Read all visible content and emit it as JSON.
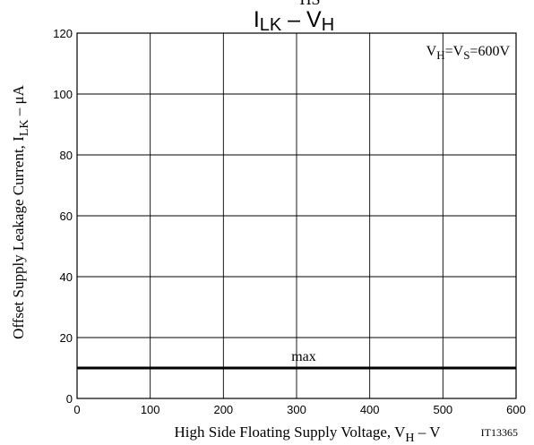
{
  "chart_data": {
    "type": "line",
    "title_top_fragment": "HS",
    "title": {
      "a": "I",
      "a_sub": "LK",
      "sep": " – ",
      "b": "V",
      "b_sub": "H"
    },
    "condition": {
      "a": "V",
      "a_sub": "H",
      "eq": "=V",
      "b_sub": "S",
      "value": "=600V"
    },
    "xlabel": {
      "text": "High Side Floating Supply Voltage, V",
      "sub": "H",
      "unit": " – V"
    },
    "ylabel": {
      "text": "Offset Supply Leakage Current, I",
      "sub": "LK",
      "unit": " – μA"
    },
    "figure_id": "IT13365",
    "xlim": [
      0,
      600
    ],
    "ylim": [
      0,
      120
    ],
    "xticks": [
      0,
      100,
      200,
      300,
      400,
      500,
      600
    ],
    "yticks": [
      0,
      20,
      40,
      60,
      80,
      100,
      120
    ],
    "grid": true,
    "series": [
      {
        "name": "max",
        "x": [
          0,
          600
        ],
        "y": [
          10,
          10
        ]
      }
    ],
    "colors": {
      "grid": "#000000",
      "line": "#000000",
      "background": "#ffffff"
    }
  }
}
